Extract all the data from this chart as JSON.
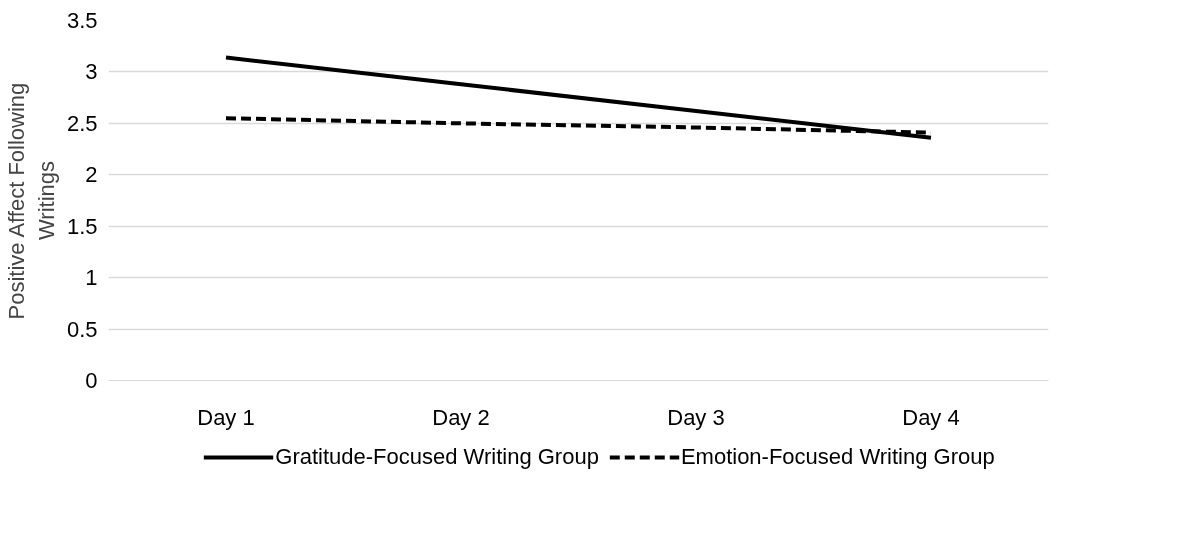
{
  "chart_data": {
    "type": "line",
    "ylabel": "Positive Affect Following\nWritings",
    "categories": [
      "Day 1",
      "Day 2",
      "Day 3",
      "Day 4"
    ],
    "series": [
      {
        "name": "Gratitude-Focused Writing Group",
        "color": "#000000",
        "values": [
          3.14,
          2.88,
          2.62,
          2.36
        ],
        "line_style": "solid"
      },
      {
        "name": "Emotion-Focused Writing Group",
        "color": "#000000",
        "values": [
          2.55,
          2.5,
          2.46,
          2.41
        ],
        "line_style": "dashed"
      }
    ],
    "ylim": [
      0,
      3.5
    ],
    "yticks": [
      0,
      {
        "value": 0.5,
        "label": "0.5"
      },
      1,
      {
        "value": 1.5,
        "label": "1.5"
      },
      2,
      {
        "value": 2.5,
        "label": "2.5"
      },
      3,
      {
        "value": 3.5,
        "label": "3.5"
      }
    ],
    "grid": "y",
    "legend": "bottom",
    "marker": "none"
  }
}
